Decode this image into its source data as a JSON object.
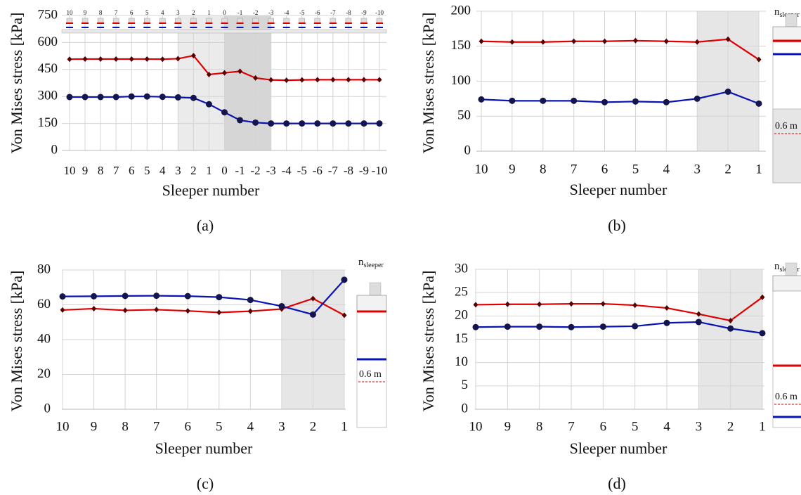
{
  "chart_data": [
    {
      "type": "line",
      "label": "(a)",
      "xlabel": "Sleeper number",
      "ylabel": "Von Mises stress [kPa]",
      "categories": [
        "10",
        "9",
        "8",
        "7",
        "6",
        "5",
        "4",
        "3",
        "2",
        "1",
        "0",
        "-1",
        "-2",
        "-3",
        "-4",
        "-5",
        "-6",
        "-7",
        "-8",
        "-9",
        "-10"
      ],
      "series": [
        {
          "color": "#e00000",
          "marker": "diamond",
          "marker_color": "#5a0000",
          "values": [
            507,
            508,
            508,
            508,
            508,
            508,
            507,
            510,
            527,
            422,
            431,
            440,
            403,
            392,
            390,
            392,
            393,
            393,
            393,
            393,
            393
          ]
        },
        {
          "color": "#0a14b4",
          "marker": "circle",
          "marker_color": "#14144e",
          "values": [
            297,
            297,
            297,
            297,
            300,
            300,
            298,
            295,
            292,
            257,
            212,
            168,
            155,
            150,
            150,
            150,
            150,
            150,
            150,
            150,
            150
          ]
        }
      ],
      "ylim": [
        0,
        750
      ],
      "yticks": [
        0,
        150,
        300,
        450,
        600,
        750
      ],
      "grid": true,
      "shade": [
        {
          "from": "3",
          "to": "0",
          "color": "#ebebeb"
        },
        {
          "from": "0",
          "to": "-3",
          "color": "#d6d6d6"
        }
      ]
    },
    {
      "type": "line",
      "label": "(b)",
      "xlabel": "Sleeper number",
      "ylabel": "Von Mises stress [kPa]",
      "categories": [
        "10",
        "9",
        "8",
        "7",
        "6",
        "5",
        "4",
        "3",
        "2",
        "1"
      ],
      "series": [
        {
          "color": "#e00000",
          "marker": "diamond",
          "marker_color": "#5a0000",
          "values": [
            157,
            156,
            156,
            157,
            157,
            158,
            157,
            156,
            160,
            131
          ]
        },
        {
          "color": "#0a14b4",
          "marker": "circle",
          "marker_color": "#14144e",
          "values": [
            74,
            72,
            72,
            72,
            70,
            71,
            70,
            75,
            85,
            68
          ]
        }
      ],
      "ylim": [
        0,
        200
      ],
      "yticks": [
        0,
        50,
        100,
        150,
        200
      ],
      "grid": true,
      "shade": [
        {
          "from": "3",
          "to": "1",
          "color": "#e6e6e6"
        }
      ],
      "inset": {
        "n": "n",
        "sub": "sleeper",
        "dimension": "0.6 m"
      }
    },
    {
      "type": "line",
      "label": "(c)",
      "xlabel": "Sleeper number",
      "ylabel": "Von Mises stress [kPa]",
      "categories": [
        "10",
        "9",
        "8",
        "7",
        "6",
        "5",
        "4",
        "3",
        "2",
        "1"
      ],
      "series": [
        {
          "color": "#e00000",
          "marker": "diamond",
          "marker_color": "#5a0000",
          "values": [
            57,
            57.8,
            56.8,
            57.2,
            56.5,
            55.6,
            56.3,
            57.6,
            63.6,
            54
          ]
        },
        {
          "color": "#0a14b4",
          "marker": "circle",
          "marker_color": "#14144e",
          "values": [
            64.8,
            64.9,
            65.1,
            65.2,
            65,
            64.4,
            62.8,
            59.2,
            54.4,
            74.4
          ]
        }
      ],
      "ylim": [
        0,
        80
      ],
      "yticks": [
        0,
        20,
        40,
        60,
        80
      ],
      "grid": true,
      "shade": [
        {
          "from": "3",
          "to": "1",
          "color": "#e6e6e6"
        }
      ],
      "inset": {
        "n": "n",
        "sub": "sleeper",
        "dimension": "0.6 m"
      }
    },
    {
      "type": "line",
      "label": "(d)",
      "xlabel": "Sleeper number",
      "ylabel": "Von Mises stress [kPa]",
      "categories": [
        "10",
        "9",
        "8",
        "7",
        "6",
        "5",
        "4",
        "3",
        "2",
        "1"
      ],
      "series": [
        {
          "color": "#e00000",
          "marker": "diamond",
          "marker_color": "#5a0000",
          "values": [
            22.4,
            22.5,
            22.5,
            22.6,
            22.6,
            22.3,
            21.7,
            20.4,
            19,
            24
          ]
        },
        {
          "color": "#0a14b4",
          "marker": "circle",
          "marker_color": "#14144e",
          "values": [
            17.6,
            17.7,
            17.7,
            17.6,
            17.7,
            17.8,
            18.5,
            18.7,
            17.3,
            16.3
          ]
        }
      ],
      "ylim": [
        0,
        30
      ],
      "yticks": [
        0,
        5,
        10,
        15,
        20,
        25,
        30
      ],
      "grid": true,
      "shade": [
        {
          "from": "3",
          "to": "1",
          "color": "#e6e6e6"
        }
      ],
      "inset": {
        "n": "n",
        "sub": "sleeper",
        "dimension": "0.6 m"
      }
    }
  ]
}
